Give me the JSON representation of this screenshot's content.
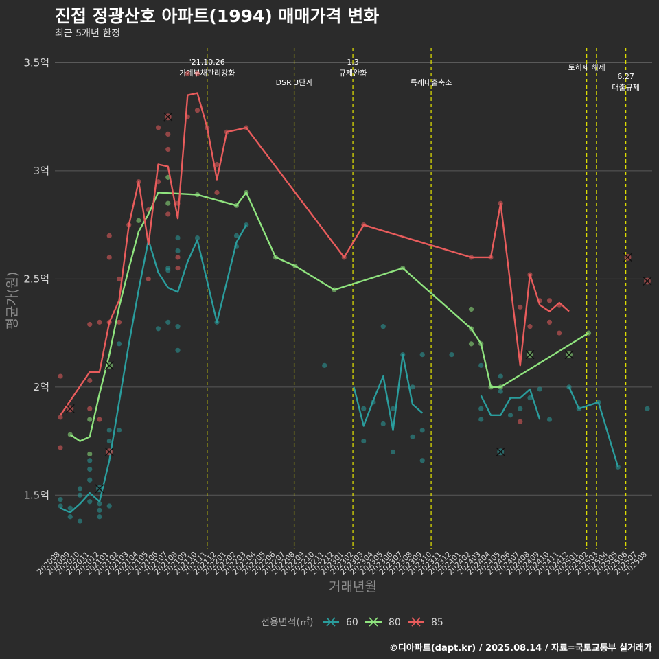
{
  "header": {
    "title": "진접 정광산호 아파트(1994) 매매가격 변화",
    "subtitle": "최근 5개년 한정"
  },
  "footer": {
    "caption": "©디아파트(dapt.kr) / 2025.08.14 / 자료=국토교통부 실거래가"
  },
  "colors": {
    "60": "#2a9d9d",
    "80": "#8fe37e",
    "85": "#e85c5c",
    "event_line": "#e6e600"
  },
  "chart_data": {
    "type": "line",
    "xlabel": "거래년월",
    "ylabel": "평균가(원)",
    "y_ticks": [
      1.5,
      2.0,
      2.5,
      3.0,
      3.5
    ],
    "y_tick_labels": [
      "1.5억",
      "2억",
      "2.5억",
      "3억",
      "3.5억"
    ],
    "ylim": [
      1.25,
      3.6
    ],
    "x_categories": [
      "202008",
      "202009",
      "202010",
      "202011",
      "202012",
      "202101",
      "202102",
      "202103",
      "202104",
      "202105",
      "202106",
      "202107",
      "202108",
      "202109",
      "202110",
      "202111",
      "202112",
      "202201",
      "202202",
      "202203",
      "202204",
      "202205",
      "202206",
      "202207",
      "202208",
      "202209",
      "202210",
      "202211",
      "202212",
      "202301",
      "202302",
      "202303",
      "202304",
      "202305",
      "202306",
      "202307",
      "202308",
      "202309",
      "202310",
      "202311",
      "202312",
      "202401",
      "202402",
      "202403",
      "202404",
      "202405",
      "202406",
      "202407",
      "202408",
      "202409",
      "202410",
      "202411",
      "202412",
      "202501",
      "202502",
      "202503",
      "202504",
      "202505",
      "202506",
      "202507",
      "202508"
    ],
    "legend": {
      "title": "전용면적(㎡)",
      "position": "bottom",
      "entries": [
        "60",
        "80",
        "85"
      ]
    },
    "events": [
      {
        "x": 15.0,
        "label": "'21.10.26\n가계부채관리강화"
      },
      {
        "x": 23.9,
        "label": "DSR 3단계"
      },
      {
        "x": 29.9,
        "label": "1.3\n규제완화"
      },
      {
        "x": 37.9,
        "label": "특례대출축소"
      },
      {
        "x": 53.8,
        "label": "토허제 해제"
      },
      {
        "x": 54.8,
        "label": ""
      },
      {
        "x": 57.8,
        "label": "6.27\n대출규제"
      }
    ],
    "series": [
      {
        "name": "60",
        "lines": [
          [
            [
              0,
              1.44
            ],
            [
              1,
              1.42
            ],
            [
              2,
              1.46
            ],
            [
              3,
              1.51
            ],
            [
              4,
              1.47
            ],
            [
              5,
              1.66
            ],
            [
              6,
              1.93
            ],
            [
              7,
              2.2
            ],
            [
              8,
              2.45
            ],
            [
              9,
              2.68
            ],
            [
              10,
              2.53
            ],
            [
              11,
              2.46
            ],
            [
              12,
              2.44
            ],
            [
              13,
              2.58
            ],
            [
              14,
              2.68
            ],
            [
              16,
              2.3
            ],
            [
              18,
              2.67
            ],
            [
              19,
              2.75
            ]
          ],
          [
            [
              30,
              2.0
            ],
            [
              31,
              1.82
            ],
            [
              32,
              1.94
            ],
            [
              33,
              2.05
            ],
            [
              34,
              1.8
            ],
            [
              35,
              2.15
            ],
            [
              36,
              1.92
            ],
            [
              37,
              1.88
            ]
          ],
          [
            [
              43,
              1.96
            ],
            [
              44,
              1.87
            ],
            [
              45,
              1.87
            ],
            [
              46,
              1.95
            ],
            [
              47,
              1.95
            ],
            [
              48,
              1.99
            ],
            [
              49,
              1.85
            ]
          ],
          [
            [
              52,
              2.0
            ],
            [
              53,
              1.9
            ],
            [
              55,
              1.93
            ],
            [
              57,
              1.63
            ]
          ]
        ],
        "points": [
          [
            0,
            1.48
          ],
          [
            0,
            1.45
          ],
          [
            1,
            1.4
          ],
          [
            1,
            1.44
          ],
          [
            2,
            1.38
          ],
          [
            2,
            1.5
          ],
          [
            2,
            1.53
          ],
          [
            3,
            1.47
          ],
          [
            3,
            1.57
          ],
          [
            3,
            1.62
          ],
          [
            3,
            1.66
          ],
          [
            4,
            1.4
          ],
          [
            4,
            1.43
          ],
          [
            4,
            1.46
          ],
          [
            5,
            1.45
          ],
          [
            5,
            1.75
          ],
          [
            5,
            1.8
          ],
          [
            6,
            1.8
          ],
          [
            6,
            2.2
          ],
          [
            10,
            2.27
          ],
          [
            11,
            2.3
          ],
          [
            11,
            2.54
          ],
          [
            11,
            2.55
          ],
          [
            12,
            2.17
          ],
          [
            12,
            2.28
          ],
          [
            12,
            2.63
          ],
          [
            12,
            2.69
          ],
          [
            14,
            2.69
          ],
          [
            16,
            2.3
          ],
          [
            18,
            2.65
          ],
          [
            18,
            2.7
          ],
          [
            19,
            2.75
          ],
          [
            27,
            2.1
          ],
          [
            31,
            1.9
          ],
          [
            31,
            1.75
          ],
          [
            32,
            1.93
          ],
          [
            33,
            2.28
          ],
          [
            33,
            1.83
          ],
          [
            34,
            1.7
          ],
          [
            34,
            1.9
          ],
          [
            35,
            2.15
          ],
          [
            36,
            2.0
          ],
          [
            36,
            1.77
          ],
          [
            37,
            2.15
          ],
          [
            37,
            1.8
          ],
          [
            37,
            1.66
          ],
          [
            40,
            2.15
          ],
          [
            43,
            2.1
          ],
          [
            43,
            1.9
          ],
          [
            43,
            1.85
          ],
          [
            45,
            1.98
          ],
          [
            45,
            2.05
          ],
          [
            46,
            1.87
          ],
          [
            47,
            1.9
          ],
          [
            48,
            1.95
          ],
          [
            49,
            1.99
          ],
          [
            50,
            1.85
          ],
          [
            52,
            2.0
          ],
          [
            53,
            1.9
          ],
          [
            55,
            1.93
          ],
          [
            57,
            1.63
          ],
          [
            60,
            1.9
          ]
        ],
        "cancelled": [
          [
            4,
            1.53
          ],
          [
            45,
            1.7
          ]
        ]
      },
      {
        "name": "80",
        "lines": [
          [
            [
              1,
              1.78
            ],
            [
              2,
              1.75
            ],
            [
              3,
              1.77
            ],
            [
              4,
              1.97
            ],
            [
              5,
              2.15
            ],
            [
              6,
              2.37
            ],
            [
              7,
              2.55
            ],
            [
              8,
              2.72
            ],
            [
              9,
              2.8
            ],
            [
              10,
              2.9
            ],
            [
              14,
              2.89
            ],
            [
              18,
              2.84
            ],
            [
              19,
              2.9
            ],
            [
              22,
              2.6
            ],
            [
              24,
              2.56
            ],
            [
              28,
              2.45
            ],
            [
              35,
              2.55
            ],
            [
              42,
              2.27
            ],
            [
              43,
              2.2
            ],
            [
              44,
              2.0
            ],
            [
              45,
              2.0
            ],
            [
              54,
              2.25
            ]
          ]
        ],
        "points": [
          [
            1,
            1.78
          ],
          [
            3,
            1.69
          ],
          [
            3,
            1.85
          ],
          [
            8,
            2.77
          ],
          [
            11,
            2.97
          ],
          [
            11,
            2.85
          ],
          [
            14,
            2.89
          ],
          [
            18,
            2.84
          ],
          [
            19,
            2.9
          ],
          [
            22,
            2.6
          ],
          [
            24,
            2.56
          ],
          [
            28,
            2.45
          ],
          [
            35,
            2.55
          ],
          [
            42,
            2.36
          ],
          [
            42,
            2.27
          ],
          [
            42,
            2.2
          ],
          [
            43,
            2.2
          ],
          [
            44,
            2.0
          ],
          [
            45,
            2.0
          ],
          [
            54,
            2.25
          ]
        ],
        "cancelled": [
          [
            5,
            2.1
          ],
          [
            48,
            2.15
          ],
          [
            52,
            2.15
          ]
        ]
      },
      {
        "name": "85",
        "lines": [
          [
            [
              0,
              1.87
            ],
            [
              3,
              2.07
            ],
            [
              4,
              2.07
            ],
            [
              5,
              2.3
            ],
            [
              6,
              2.4
            ],
            [
              7,
              2.75
            ],
            [
              8,
              2.95
            ],
            [
              9,
              2.66
            ],
            [
              10,
              3.03
            ],
            [
              11,
              3.02
            ],
            [
              12,
              2.78
            ],
            [
              13,
              3.35
            ],
            [
              14,
              3.36
            ],
            [
              15,
              3.2
            ],
            [
              16,
              2.96
            ],
            [
              17,
              3.18
            ],
            [
              19,
              3.2
            ],
            [
              29,
              2.6
            ],
            [
              31,
              2.75
            ],
            [
              42,
              2.6
            ],
            [
              44,
              2.6
            ],
            [
              45,
              2.85
            ],
            [
              47,
              2.1
            ],
            [
              48,
              2.52
            ],
            [
              49,
              2.38
            ],
            [
              50,
              2.35
            ],
            [
              51,
              2.39
            ],
            [
              52,
              2.35
            ]
          ]
        ],
        "points": [
          [
            0,
            2.05
          ],
          [
            0,
            1.72
          ],
          [
            0,
            1.86
          ],
          [
            3,
            2.29
          ],
          [
            3,
            2.03
          ],
          [
            3,
            1.9
          ],
          [
            4,
            2.3
          ],
          [
            4,
            1.85
          ],
          [
            5,
            2.7
          ],
          [
            5,
            2.6
          ],
          [
            5,
            2.3
          ],
          [
            6,
            2.5
          ],
          [
            6,
            2.3
          ],
          [
            7,
            2.75
          ],
          [
            8,
            2.95
          ],
          [
            9,
            2.82
          ],
          [
            9,
            2.5
          ],
          [
            10,
            3.2
          ],
          [
            10,
            2.95
          ],
          [
            11,
            3.17
          ],
          [
            11,
            3.1
          ],
          [
            11,
            2.8
          ],
          [
            12,
            2.85
          ],
          [
            12,
            2.6
          ],
          [
            12,
            2.55
          ],
          [
            13,
            3.45
          ],
          [
            13,
            3.25
          ],
          [
            14,
            3.45
          ],
          [
            14,
            3.28
          ],
          [
            15,
            3.2
          ],
          [
            16,
            3.03
          ],
          [
            16,
            2.9
          ],
          [
            17,
            3.18
          ],
          [
            19,
            3.2
          ],
          [
            29,
            2.6
          ],
          [
            31,
            2.75
          ],
          [
            42,
            2.6
          ],
          [
            44,
            2.6
          ],
          [
            45,
            2.85
          ],
          [
            47,
            2.37
          ],
          [
            47,
            1.84
          ],
          [
            48,
            2.52
          ],
          [
            48,
            2.28
          ],
          [
            49,
            2.4
          ],
          [
            50,
            2.3
          ],
          [
            50,
            2.4
          ],
          [
            51,
            2.38
          ],
          [
            51,
            2.25
          ]
        ],
        "cancelled": [
          [
            1,
            1.9
          ],
          [
            5,
            1.7
          ],
          [
            11,
            3.25
          ],
          [
            58,
            2.6
          ],
          [
            60,
            2.49
          ]
        ]
      }
    ]
  }
}
